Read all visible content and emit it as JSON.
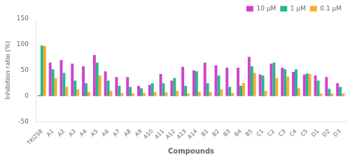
{
  "chart_data": {
    "type": "bar",
    "xlabel": "Compounds",
    "ylabel": "Inhibition ratio (%)",
    "categories": [
      "TKI258",
      "A1",
      "A2",
      "A3",
      "A4",
      "A5",
      "A6",
      "A7",
      "A8",
      "A9",
      "A10",
      "A11",
      "A12",
      "A13",
      "A14",
      "B1",
      "B2",
      "B3",
      "B4",
      "B5",
      "C1",
      "C2",
      "C3",
      "C4",
      "C5",
      "D1",
      "D2",
      "D3"
    ],
    "series": [
      {
        "name": "10 μM",
        "color": "#CC44CC",
        "values": [
          2,
          65,
          70,
          63,
          58,
          80,
          48,
          37,
          37,
          20,
          22,
          43,
          30,
          57,
          50,
          65,
          60,
          55,
          55,
          76,
          42,
          63,
          55,
          47,
          42,
          40,
          37,
          25
        ]
      },
      {
        "name": "1 μM",
        "color": "#22BB88",
        "values": [
          98,
          52,
          45,
          30,
          25,
          65,
          30,
          20,
          18,
          15,
          25,
          25,
          35,
          20,
          48,
          25,
          40,
          18,
          20,
          58,
          40,
          65,
          52,
          52,
          44,
          30,
          14,
          18
        ]
      },
      {
        "name": "0.1 μM",
        "color": "#FFAA33",
        "values": [
          97,
          35,
          18,
          13,
          8,
          40,
          10,
          6,
          5,
          6,
          8,
          7,
          10,
          5,
          8,
          8,
          13,
          6,
          25,
          45,
          10,
          35,
          38,
          15,
          43,
          5,
          5,
          5
        ]
      }
    ],
    "ylim": [
      -50,
      150
    ],
    "yticks": [
      -50,
      0,
      50,
      100,
      150
    ],
    "grid": false,
    "legend": "upper right"
  }
}
